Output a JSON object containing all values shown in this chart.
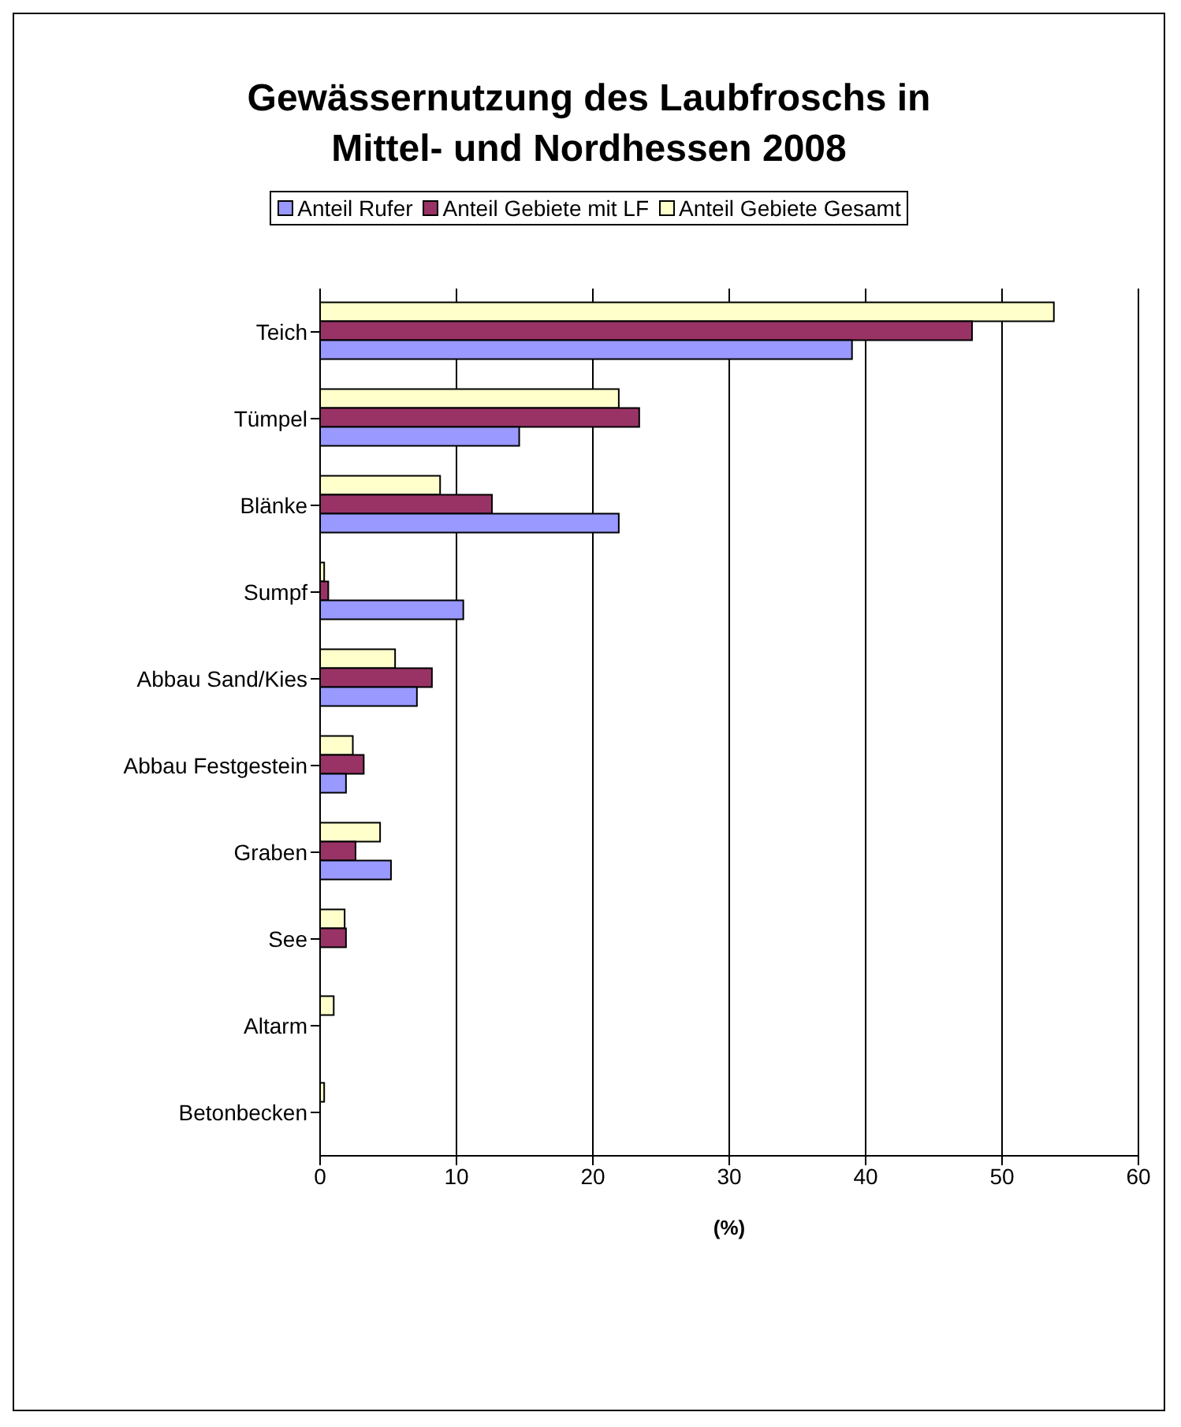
{
  "chart_data": {
    "type": "bar",
    "orientation": "horizontal",
    "title": "Gewässernutzung des Laubfroschs in Mittel- und Nordhessen 2008",
    "xlabel": "(%)",
    "categories": [
      "Teich",
      "Tümpel",
      "Blänke",
      "Sumpf",
      "Abbau Sand/Kies",
      "Abbau Festgestein",
      "Graben",
      "See",
      "Altarm",
      "Betonbecken"
    ],
    "series": [
      {
        "name": "Anteil Rufer",
        "color": "#9999ff",
        "values": [
          39.0,
          14.6,
          21.9,
          10.5,
          7.1,
          1.9,
          5.2,
          0,
          0,
          0
        ]
      },
      {
        "name": "Anteil Gebiete mit LF",
        "color": "#993366",
        "values": [
          47.8,
          23.4,
          12.6,
          0.6,
          8.2,
          3.2,
          2.6,
          1.9,
          0,
          0
        ]
      },
      {
        "name": "Anteil Gebiete Gesamt",
        "color": "#ffffcc",
        "values": [
          53.8,
          21.9,
          8.8,
          0.3,
          5.5,
          2.4,
          4.4,
          1.8,
          1.0,
          0.3
        ]
      }
    ],
    "xlim": [
      0,
      60
    ],
    "xticks": [
      0,
      10,
      20,
      30,
      40,
      50,
      60
    ],
    "grid": "x",
    "legend": "top"
  }
}
